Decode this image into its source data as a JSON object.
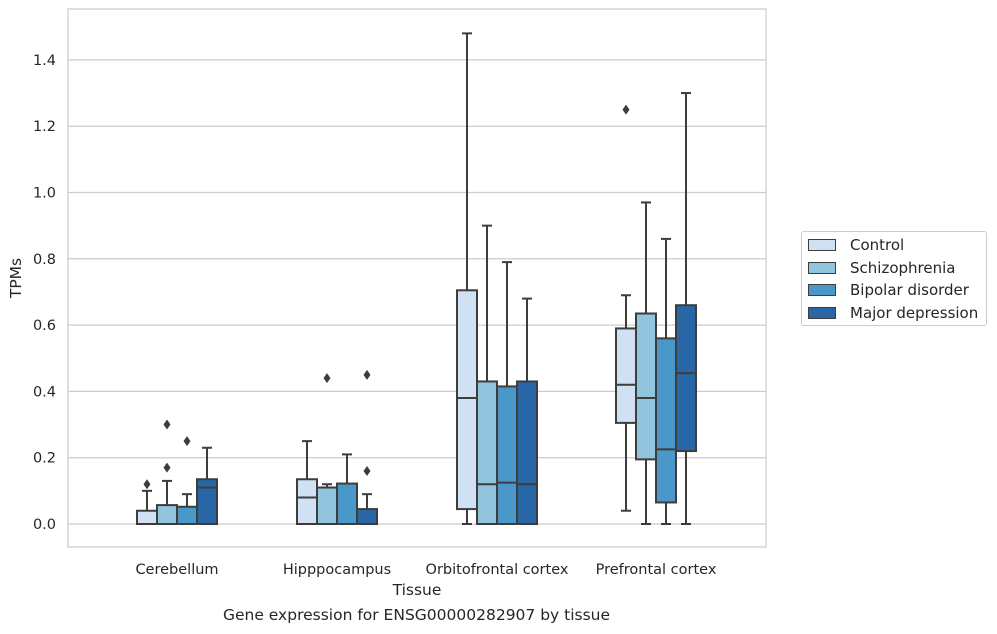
{
  "chart_data": {
    "type": "box",
    "title": "",
    "xlabel": "Tissue",
    "ylabel": "TPMs",
    "caption": "Gene expression for ENSG00000282907 by tissue",
    "ylim": [
      -0.07,
      1.56
    ],
    "yticks": [
      0.0,
      0.2,
      0.4,
      0.6,
      0.8,
      1.0,
      1.2,
      1.4
    ],
    "ytick_labels": [
      "0.0",
      "0.2",
      "0.4",
      "0.6",
      "0.8",
      "1.0",
      "1.2",
      "1.4"
    ],
    "grid": "horizontal",
    "legend_position": "right",
    "categories": [
      "Cerebellum",
      "Hipppocampus",
      "Orbitofrontal cortex",
      "Prefrontal cortex"
    ],
    "series": [
      {
        "name": "Control",
        "color": "#cfe1f2",
        "boxes": [
          {
            "whislo": 0.0,
            "q1": 0.0,
            "med": 0.0,
            "q3": 0.04,
            "whishi": 0.1,
            "fliers": [
              0.12
            ]
          },
          {
            "whislo": 0.0,
            "q1": 0.0,
            "med": 0.08,
            "q3": 0.135,
            "whishi": 0.25,
            "fliers": []
          },
          {
            "whislo": 0.0,
            "q1": 0.045,
            "med": 0.38,
            "q3": 0.705,
            "whishi": 1.48,
            "fliers": []
          },
          {
            "whislo": 0.04,
            "q1": 0.305,
            "med": 0.42,
            "q3": 0.59,
            "whishi": 0.69,
            "fliers": [
              1.25
            ]
          }
        ]
      },
      {
        "name": "Schizophrenia",
        "color": "#93c4de",
        "boxes": [
          {
            "whislo": 0.0,
            "q1": 0.0,
            "med": 0.0,
            "q3": 0.057,
            "whishi": 0.13,
            "fliers": [
              0.17,
              0.3
            ]
          },
          {
            "whislo": 0.0,
            "q1": 0.0,
            "med": 0.11,
            "q3": 0.11,
            "whishi": 0.12,
            "fliers": [
              0.44
            ]
          },
          {
            "whislo": 0.0,
            "q1": 0.0,
            "med": 0.12,
            "q3": 0.43,
            "whishi": 0.9,
            "fliers": []
          },
          {
            "whislo": 0.0,
            "q1": 0.195,
            "med": 0.38,
            "q3": 0.635,
            "whishi": 0.97,
            "fliers": []
          }
        ]
      },
      {
        "name": "Bipolar disorder",
        "color": "#4a98c9",
        "boxes": [
          {
            "whislo": 0.0,
            "q1": 0.0,
            "med": 0.0,
            "q3": 0.052,
            "whishi": 0.09,
            "fliers": [
              0.25
            ]
          },
          {
            "whislo": 0.0,
            "q1": 0.0,
            "med": 0.0,
            "q3": 0.122,
            "whishi": 0.21,
            "fliers": []
          },
          {
            "whislo": 0.0,
            "q1": 0.0,
            "med": 0.125,
            "q3": 0.415,
            "whishi": 0.79,
            "fliers": []
          },
          {
            "whislo": 0.0,
            "q1": 0.065,
            "med": 0.225,
            "q3": 0.56,
            "whishi": 0.86,
            "fliers": []
          }
        ]
      },
      {
        "name": "Major depression",
        "color": "#2866a6",
        "boxes": [
          {
            "whislo": 0.0,
            "q1": 0.0,
            "med": 0.11,
            "q3": 0.135,
            "whishi": 0.23,
            "fliers": []
          },
          {
            "whislo": 0.0,
            "q1": 0.0,
            "med": 0.0,
            "q3": 0.045,
            "whishi": 0.09,
            "fliers": [
              0.16,
              0.45
            ]
          },
          {
            "whislo": 0.0,
            "q1": 0.0,
            "med": 0.12,
            "q3": 0.43,
            "whishi": 0.68,
            "fliers": []
          },
          {
            "whislo": 0.0,
            "q1": 0.22,
            "med": 0.455,
            "q3": 0.66,
            "whishi": 1.3,
            "fliers": []
          }
        ]
      }
    ]
  }
}
